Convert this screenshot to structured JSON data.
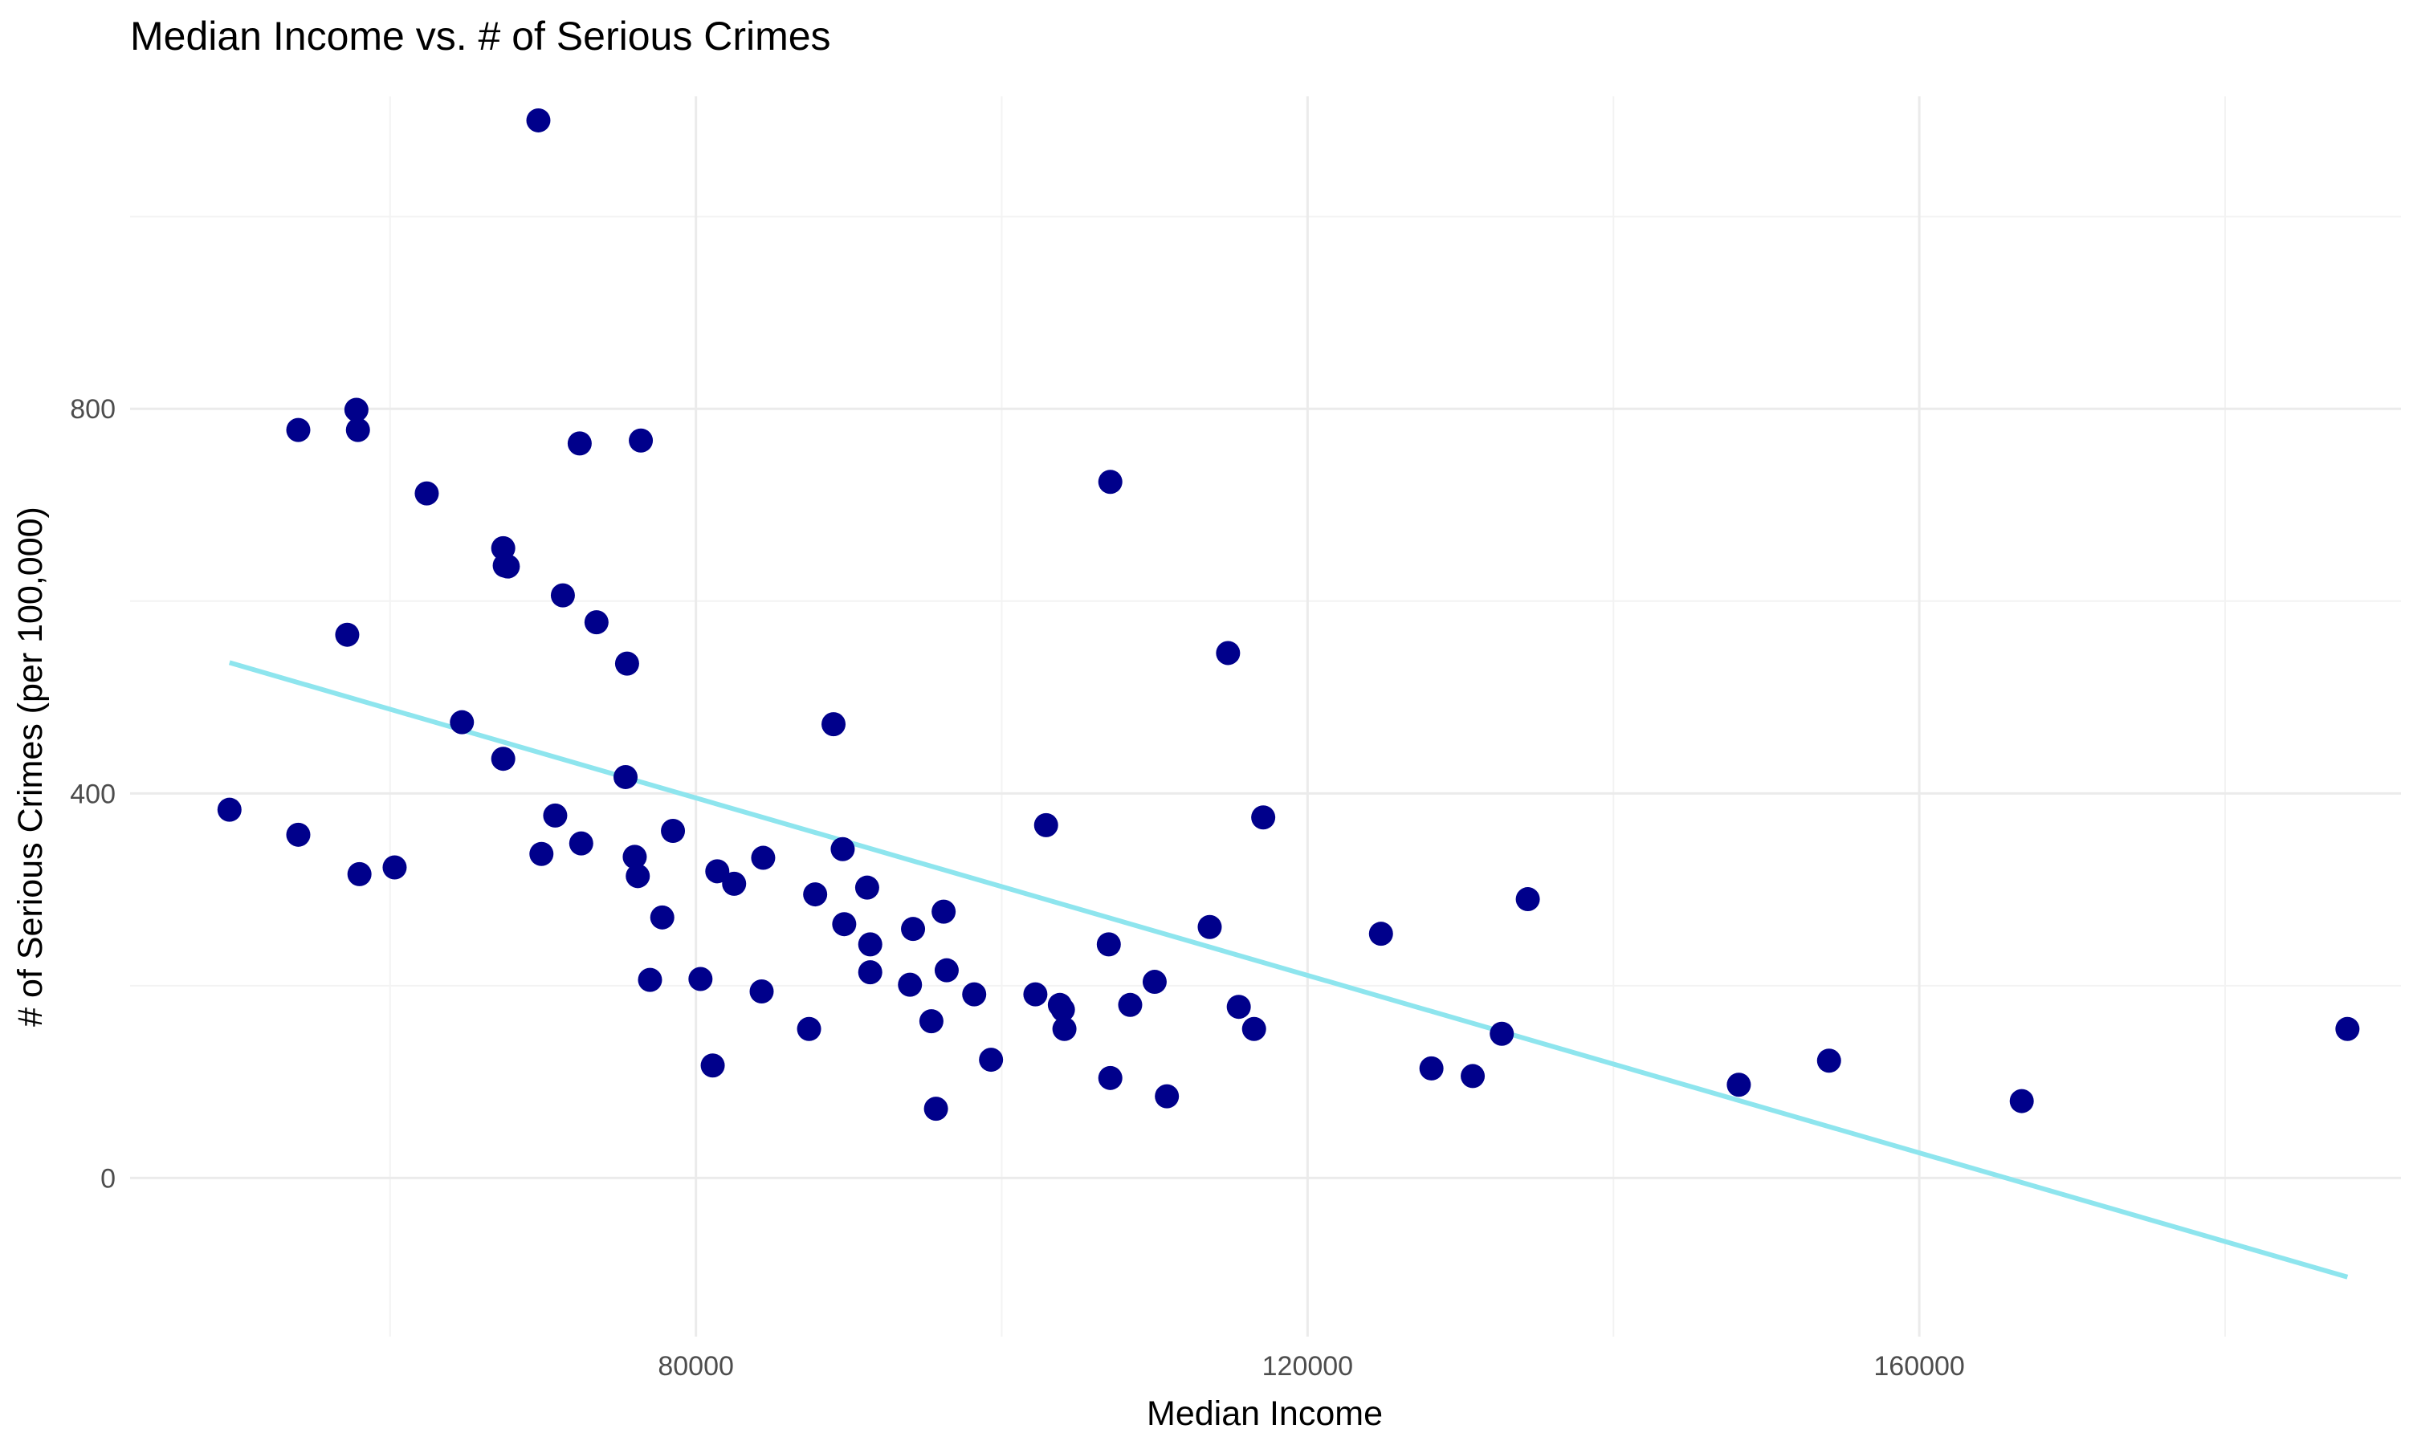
{
  "chart_data": {
    "type": "scatter",
    "title": "Median Income vs. # of Serious Crimes",
    "xlabel": "Median Income",
    "ylabel": "# of Serious Crimes (per 100,000)",
    "xlim": [
      43000,
      191500
    ],
    "ylim": [
      -165,
      1125
    ],
    "x_ticks": [
      80000,
      120000,
      160000
    ],
    "y_ticks": [
      0,
      400,
      800
    ],
    "grid": true,
    "colors": {
      "points": "#00008b",
      "trend_line": "#8ee5ee"
    },
    "series": [
      {
        "type": "scatter",
        "points": [
          [
            49500,
            383
          ],
          [
            54000,
            357
          ],
          [
            54000,
            778
          ],
          [
            57200,
            565
          ],
          [
            57800,
            799
          ],
          [
            57900,
            778
          ],
          [
            58000,
            316
          ],
          [
            60300,
            323
          ],
          [
            62400,
            712
          ],
          [
            64700,
            474
          ],
          [
            67400,
            655
          ],
          [
            67500,
            637
          ],
          [
            67700,
            636
          ],
          [
            67400,
            436
          ],
          [
            69700,
            1100
          ],
          [
            69900,
            337
          ],
          [
            70800,
            377
          ],
          [
            71300,
            606
          ],
          [
            72400,
            764
          ],
          [
            72500,
            348
          ],
          [
            73500,
            578
          ],
          [
            75400,
            417
          ],
          [
            75500,
            535
          ],
          [
            76000,
            334
          ],
          [
            76200,
            314
          ],
          [
            76400,
            767
          ],
          [
            77000,
            206
          ],
          [
            77800,
            271
          ],
          [
            78500,
            361
          ],
          [
            80300,
            207
          ],
          [
            81100,
            117
          ],
          [
            81400,
            319
          ],
          [
            82500,
            306
          ],
          [
            84300,
            194
          ],
          [
            84400,
            333
          ],
          [
            87400,
            155
          ],
          [
            87800,
            295
          ],
          [
            89000,
            472
          ],
          [
            89600,
            342
          ],
          [
            89700,
            264
          ],
          [
            91200,
            302
          ],
          [
            91400,
            243
          ],
          [
            91400,
            214
          ],
          [
            94000,
            201
          ],
          [
            94200,
            259
          ],
          [
            95400,
            163
          ],
          [
            95700,
            72
          ],
          [
            96200,
            277
          ],
          [
            96400,
            216
          ],
          [
            98200,
            191
          ],
          [
            99300,
            123
          ],
          [
            102200,
            191
          ],
          [
            102900,
            367
          ],
          [
            103800,
            180
          ],
          [
            104000,
            175
          ],
          [
            104100,
            155
          ],
          [
            107000,
            243
          ],
          [
            107100,
            104
          ],
          [
            107100,
            724
          ],
          [
            108400,
            180
          ],
          [
            110000,
            204
          ],
          [
            110800,
            85
          ],
          [
            113600,
            261
          ],
          [
            114800,
            546
          ],
          [
            115500,
            178
          ],
          [
            116500,
            155
          ],
          [
            117100,
            375
          ],
          [
            124800,
            254
          ],
          [
            128100,
            114
          ],
          [
            130800,
            106
          ],
          [
            132700,
            150
          ],
          [
            134400,
            290
          ],
          [
            148200,
            97
          ],
          [
            154100,
            122
          ],
          [
            166700,
            80
          ],
          [
            188000,
            155
          ]
        ]
      },
      {
        "type": "line",
        "points": [
          [
            49500,
            536
          ],
          [
            188000,
            -103
          ]
        ]
      }
    ]
  }
}
